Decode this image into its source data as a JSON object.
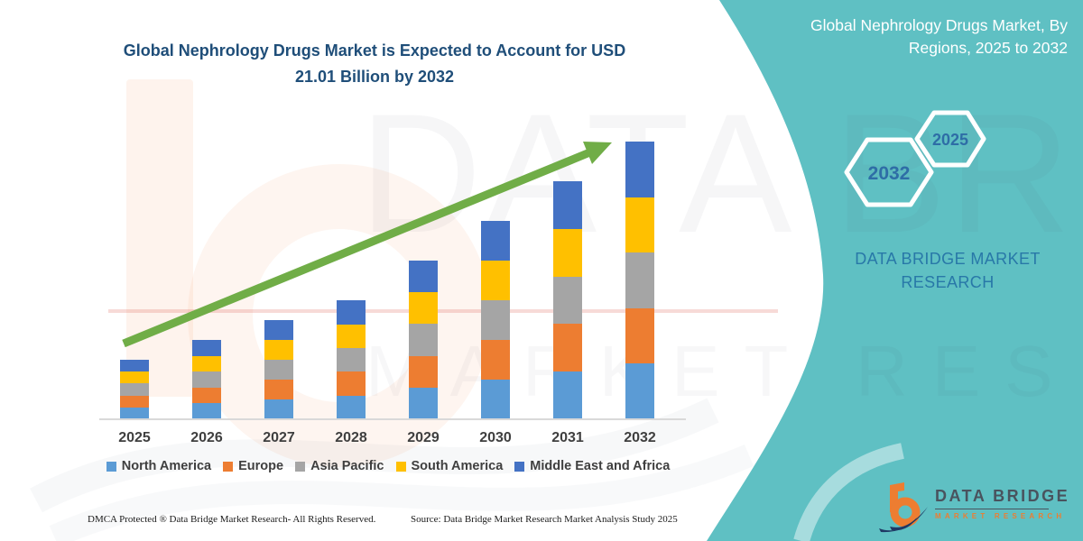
{
  "title": {
    "line1": "Global Nephrology Drugs Market is Expected to Account for USD",
    "line2": "21.01 Billion by 2032"
  },
  "side_panel": {
    "heading_line1": "Global Nephrology Drugs Market, By",
    "heading_line2": "Regions, 2025 to 2032",
    "hexagon_back_label": "2032",
    "hexagon_front_label": "2025",
    "brand_line1": "DATA BRIDGE MARKET",
    "brand_line2": "RESEARCH"
  },
  "chart_data": {
    "type": "bar",
    "stacked": true,
    "title": "Global Nephrology Drugs Market is Expected to Account for USD 21.01 Billion by 2032",
    "unit": "USD Billion",
    "categories": [
      "2025",
      "2026",
      "2027",
      "2028",
      "2029",
      "2030",
      "2031",
      "2032"
    ],
    "series": [
      {
        "name": "North America",
        "color": "#5B9BD5",
        "values": [
          0.9,
          1.2,
          1.5,
          1.8,
          2.4,
          3.0,
          3.6,
          4.2
        ]
      },
      {
        "name": "Europe",
        "color": "#ED7D31",
        "values": [
          0.9,
          1.2,
          1.5,
          1.8,
          2.4,
          3.0,
          3.6,
          4.2
        ]
      },
      {
        "name": "Asia Pacific",
        "color": "#A5A5A5",
        "values": [
          0.9,
          1.2,
          1.5,
          1.8,
          2.4,
          3.0,
          3.6,
          4.2
        ]
      },
      {
        "name": "South America",
        "color": "#FFC000",
        "values": [
          0.9,
          1.2,
          1.5,
          1.8,
          2.4,
          3.0,
          3.6,
          4.2
        ]
      },
      {
        "name": "Middle East and Africa",
        "color": "#4472C4",
        "values": [
          0.9,
          1.2,
          1.5,
          1.8,
          2.4,
          3.0,
          3.6,
          4.21
        ]
      }
    ],
    "totals": [
      4.5,
      6.0,
      7.5,
      9.0,
      12.0,
      15.0,
      18.0,
      21.01
    ],
    "xlabel": "",
    "ylabel": "",
    "ylim": [
      0,
      21.01
    ],
    "gridlines": false,
    "legend_position": "bottom",
    "annotations": [
      "upward green trend arrow across bars"
    ]
  },
  "watermark": {
    "line1": "DATA BRIDGE",
    "line2": "MARKET RESEARCH"
  },
  "footer": {
    "left": "DMCA Protected ® Data Bridge Market Research-  All Rights Reserved.",
    "source": "Source: Data Bridge Market Research  Market Analysis Study 2025"
  },
  "logo": {
    "name": "DATA BRIDGE",
    "subtitle": "MARKET RESEARCH"
  },
  "colors": {
    "teal_panel": "#5FC0C3",
    "arrow_green": "#70AD47",
    "title_text": "#1F4E79",
    "hexagon_year_text": "#2E6DA6",
    "panel_brand_text": "#2878A8"
  }
}
